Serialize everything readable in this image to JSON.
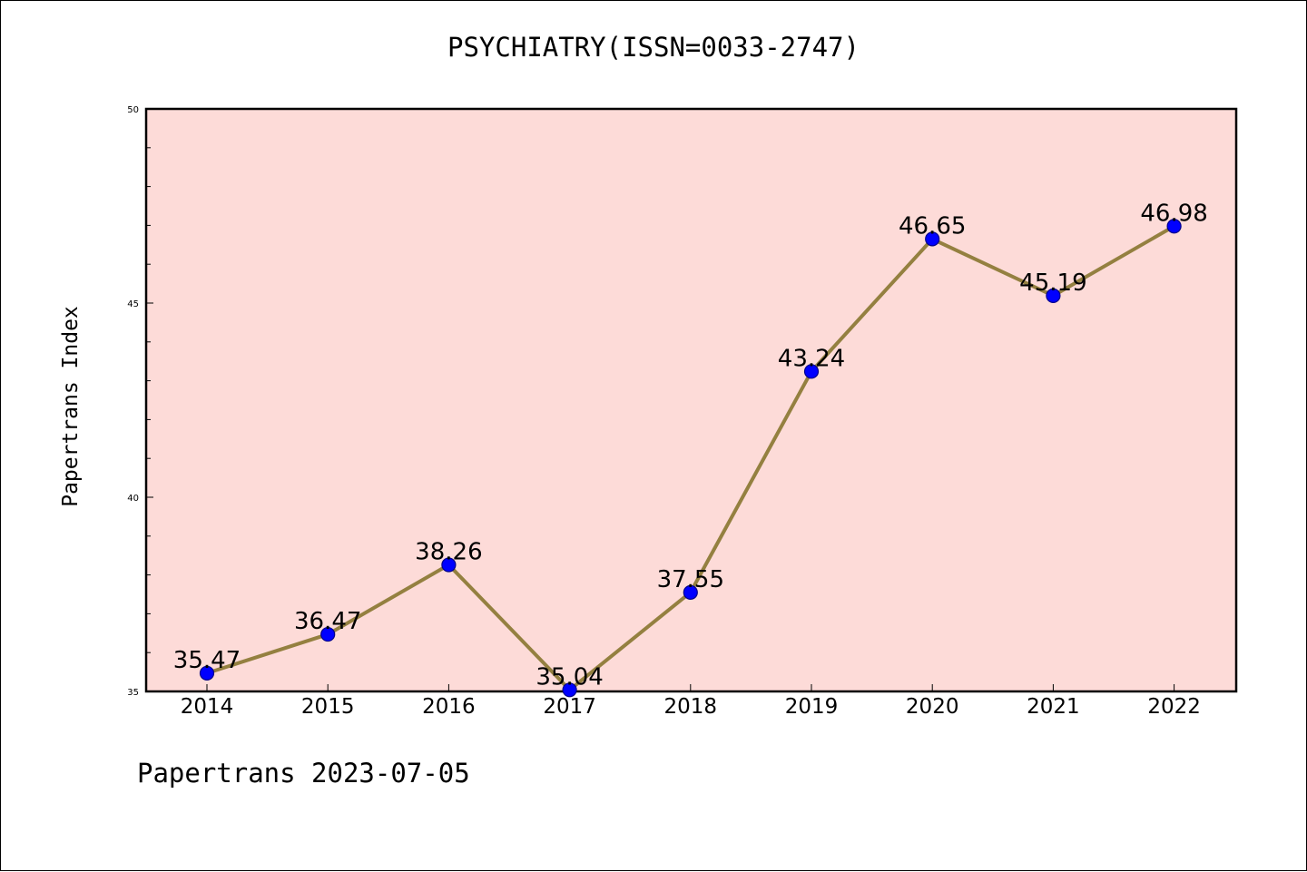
{
  "chart_data": {
    "type": "line",
    "title": "PSYCHIATRY(ISSN=0033-2747)",
    "ylabel": "Papertrans Index",
    "xlabel": "",
    "footer": "Papertrans 2023-07-05",
    "categories": [
      "2014",
      "2015",
      "2016",
      "2017",
      "2018",
      "2019",
      "2020",
      "2021",
      "2022"
    ],
    "series": [
      {
        "values": [
          35.47,
          36.47,
          38.26,
          35.04,
          37.55,
          43.24,
          46.65,
          45.19,
          46.98
        ],
        "labels": [
          "35.47",
          "36.47",
          "38.26",
          "35.04",
          "37.55",
          "43.24",
          "46.65",
          "45.19",
          "46.98"
        ]
      }
    ],
    "ylim": [
      35,
      50
    ],
    "yticks": [
      35,
      40,
      45,
      50
    ],
    "ytick_labels": [
      "35",
      "40",
      "45",
      "50"
    ],
    "grid": false,
    "colors": {
      "plot_background": "#fddbd8",
      "line": "#948040",
      "marker_fill": "#0000ff",
      "marker_edge": "#00008b"
    }
  }
}
